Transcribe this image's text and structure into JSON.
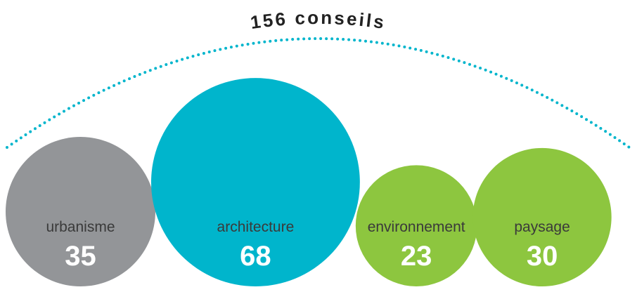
{
  "chart_data": {
    "type": "bubble",
    "title": "156 conseils",
    "categories": [
      "urbanisme",
      "architecture",
      "environnement",
      "paysage"
    ],
    "values": [
      35,
      68,
      23,
      30
    ],
    "colors": [
      "#939598",
      "#00b5cc",
      "#8dc63f",
      "#8dc63f"
    ]
  }
}
